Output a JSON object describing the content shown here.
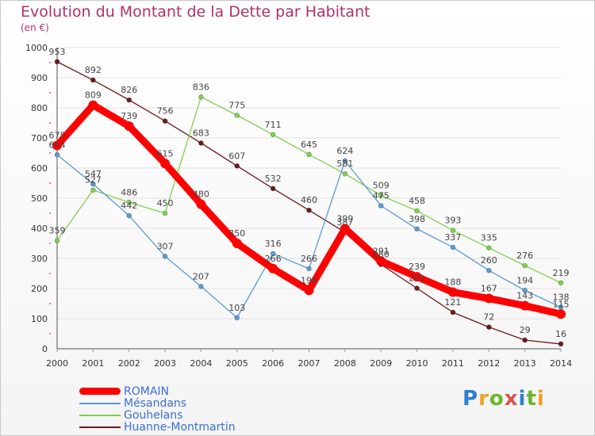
{
  "title": "Evolution du Montant de la Dette par Habitant",
  "subtitle": "(en €)",
  "logo_text": "Proxiti",
  "chart_data": {
    "type": "line",
    "title": "Evolution du Montant de la Dette par Habitant",
    "ylabel": "(en €)",
    "x": [
      "2000",
      "2001",
      "2002",
      "2003",
      "2004",
      "2005",
      "2006",
      "2007",
      "2008",
      "2009",
      "2010",
      "2011",
      "2012",
      "2013",
      "2014"
    ],
    "ylim": [
      0,
      1000
    ],
    "yticks": [
      0,
      100,
      200,
      300,
      400,
      500,
      600,
      700,
      800,
      900,
      1000
    ],
    "series": [
      {
        "name": "Huanne-Montmartin",
        "color": "#6b1a1a",
        "values": [
          953,
          892,
          826,
          756,
          683,
          607,
          532,
          460,
          387,
          280,
          201,
          121,
          72,
          29,
          16
        ]
      },
      {
        "name": "Gouhelans",
        "color": "#80d050",
        "values": [
          359,
          527,
          486,
          450,
          836,
          775,
          711,
          645,
          581,
          509,
          458,
          393,
          335,
          276,
          219
        ]
      },
      {
        "name": "Mésandans",
        "color": "#5b9bd5",
        "values": [
          644,
          547,
          442,
          307,
          207,
          103,
          316,
          266,
          624,
          475,
          398,
          337,
          260,
          194,
          138
        ]
      },
      {
        "name": "ROMAIN",
        "color": "#ff0000",
        "values": [
          675,
          809,
          739,
          615,
          480,
          350,
          266,
          194,
          399,
          291,
          239,
          188,
          167,
          143,
          115
        ]
      }
    ],
    "legend": [
      "ROMAIN",
      "Mésandans",
      "Gouhelans",
      "Huanne-Montmartin"
    ]
  }
}
